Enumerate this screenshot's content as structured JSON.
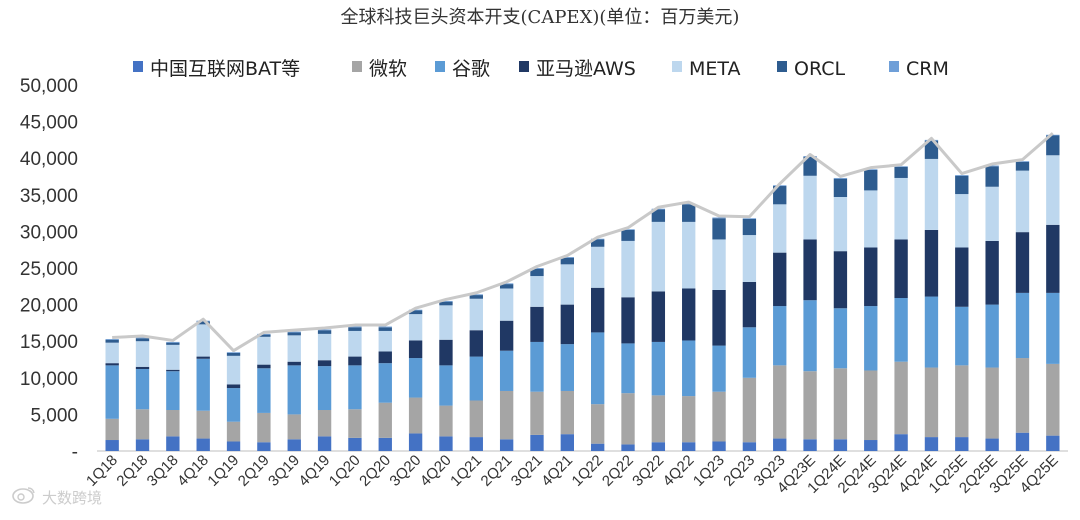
{
  "chart_data": {
    "type": "bar",
    "stacked": true,
    "title": "全球科技巨头资本开支(CAPEX)(单位：百万美元)",
    "xlabel": "",
    "ylabel": "",
    "ylim": [
      0,
      50000
    ],
    "yticks": [
      0,
      5000,
      10000,
      15000,
      20000,
      25000,
      30000,
      35000,
      40000,
      45000,
      50000
    ],
    "ytick_labels": [
      "-",
      "5,000",
      "10,000",
      "15,000",
      "20,000",
      "25,000",
      "30,000",
      "35,000",
      "40,000",
      "45,000",
      "50,000"
    ],
    "legend_position": "top",
    "categories": [
      "1Q18",
      "2Q18",
      "3Q18",
      "4Q18",
      "1Q19",
      "2Q19",
      "3Q19",
      "4Q19",
      "1Q20",
      "2Q20",
      "3Q20",
      "4Q20",
      "1Q21",
      "2Q21",
      "3Q21",
      "4Q21",
      "1Q22",
      "2Q22",
      "3Q22",
      "4Q22",
      "1Q23",
      "2Q23",
      "3Q23",
      "4Q23E",
      "1Q24E",
      "2Q24E",
      "3Q24E",
      "4Q24E",
      "1Q25E",
      "2Q25E",
      "3Q25E",
      "4Q25E"
    ],
    "series": [
      {
        "name": "中国互联网BAT等",
        "color": "#4472c4",
        "values": [
          1500,
          1600,
          2000,
          1700,
          1300,
          1200,
          1600,
          2000,
          1800,
          1800,
          2400,
          2000,
          1900,
          1600,
          2200,
          2300,
          1000,
          900,
          1200,
          1200,
          1300,
          1200,
          1700,
          1600,
          1600,
          1500,
          2300,
          1900,
          1900,
          1700,
          2500,
          2100
        ]
      },
      {
        "name": "微软",
        "color": "#a5a5a5",
        "values": [
          2900,
          4100,
          3600,
          3800,
          2700,
          4000,
          3400,
          3600,
          3900,
          4800,
          4900,
          4200,
          5000,
          6600,
          5900,
          5900,
          5400,
          7000,
          6400,
          6300,
          6800,
          8800,
          10000,
          9300,
          9700,
          9500,
          9900,
          9500,
          9800,
          9700,
          10200,
          9800
        ]
      },
      {
        "name": "谷歌",
        "color": "#5b9bd5",
        "values": [
          7300,
          5500,
          5300,
          7100,
          4600,
          6100,
          6700,
          6000,
          6000,
          5400,
          5400,
          5500,
          6000,
          5500,
          6800,
          6400,
          9800,
          6800,
          7300,
          7600,
          6300,
          6900,
          8100,
          9700,
          8200,
          8800,
          8700,
          9700,
          8000,
          8600,
          8900,
          9700
        ]
      },
      {
        "name": "亚马逊AWS",
        "color": "#203864",
        "values": [
          300,
          300,
          200,
          300,
          500,
          500,
          500,
          800,
          1200,
          1600,
          2400,
          3500,
          3600,
          4100,
          4800,
          5400,
          6100,
          6300,
          6900,
          7100,
          7600,
          6200,
          7300,
          8300,
          7800,
          8000,
          8000,
          9100,
          8100,
          8700,
          8300,
          9300
        ]
      },
      {
        "name": "META",
        "color": "#bdd7ee",
        "values": [
          2800,
          3500,
          3400,
          4400,
          3900,
          3800,
          3600,
          3600,
          3500,
          2800,
          3600,
          4700,
          4300,
          4400,
          4200,
          5500,
          5600,
          7700,
          9500,
          9100,
          6900,
          6400,
          6600,
          8700,
          7400,
          7800,
          8400,
          9700,
          7300,
          7400,
          8400,
          9500
        ]
      },
      {
        "name": "ORCL",
        "color": "#2e5c8f",
        "values": [
          400,
          400,
          300,
          400,
          400,
          300,
          400,
          500,
          500,
          500,
          500,
          500,
          500,
          600,
          1000,
          900,
          1000,
          1500,
          1700,
          2400,
          2900,
          2200,
          2500,
          2600,
          2500,
          2800,
          1500,
          2500,
          2500,
          2800,
          1200,
          2700
        ]
      },
      {
        "name": "CRM",
        "color": "#6f9fd8",
        "values": [
          100,
          100,
          100,
          100,
          100,
          100,
          100,
          100,
          100,
          100,
          100,
          100,
          100,
          100,
          100,
          100,
          100,
          100,
          100,
          100,
          100,
          100,
          100,
          100,
          100,
          100,
          100,
          100,
          100,
          100,
          100,
          100
        ]
      }
    ],
    "total_line": {
      "color": "#c9c9c9",
      "description": "total of all series (line over bar tops)"
    }
  },
  "watermark": {
    "text": "大数跨境"
  }
}
